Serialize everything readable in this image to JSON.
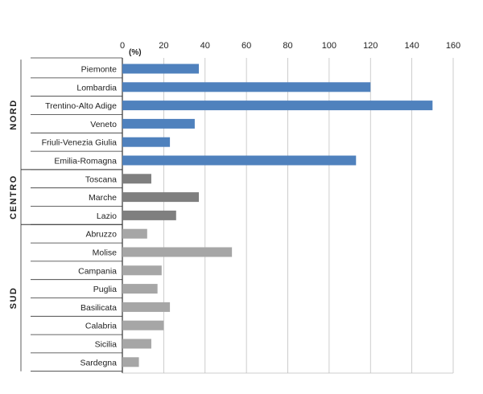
{
  "chart_data": {
    "type": "bar",
    "orientation": "horizontal",
    "title": "",
    "xlabel": "",
    "ylabel": "",
    "unit_label": "(%)",
    "xlim": [
      0,
      160
    ],
    "x_ticks": [
      "0",
      "20",
      "40",
      "60",
      "80",
      "100",
      "120",
      "140",
      "160"
    ],
    "axis_position": "top",
    "grid": "vertical",
    "legend": "none",
    "colors": {
      "NORD": "#4f81bd",
      "CENTRO": "#7f7f7f",
      "SUD": "#a6a6a6",
      "grid": "#bfbfbf",
      "axis": "#333333"
    },
    "groups": [
      {
        "name": "NORD",
        "categories": [
          "Piemonte",
          "Lombardia",
          "Trentino-Alto Adige",
          "Veneto",
          "Friuli-Venezia Giulia",
          "Emilia-Romagna"
        ],
        "values": [
          37,
          120,
          150,
          35,
          23,
          113
        ]
      },
      {
        "name": "CENTRO",
        "categories": [
          "Toscana",
          "Marche",
          "Lazio"
        ],
        "values": [
          14,
          37,
          26
        ]
      },
      {
        "name": "SUD",
        "categories": [
          "Abruzzo",
          "Molise",
          "Campania",
          "Puglia",
          "Basilicata",
          "Calabria",
          "Sicilia",
          "Sardegna"
        ],
        "values": [
          12,
          53,
          19,
          17,
          23,
          20,
          14,
          8
        ]
      }
    ]
  }
}
